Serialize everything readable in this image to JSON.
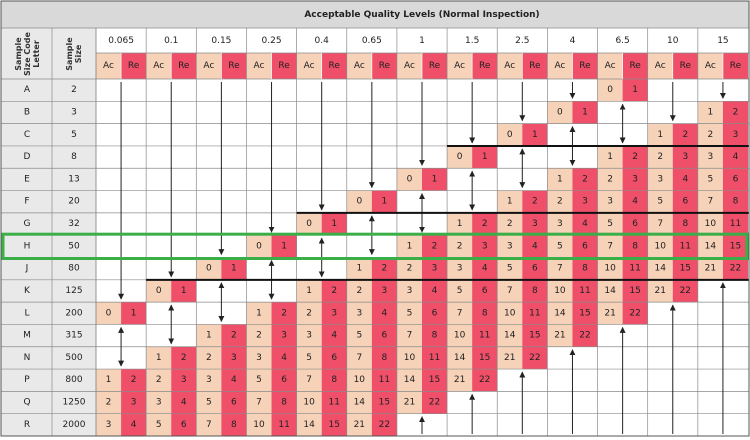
{
  "header": {
    "title": "Acceptable Quality Levels (Normal Inspection)",
    "code_letter_label": "Sample Size Code Letter",
    "sample_size_label": "Sample Size",
    "aql_levels": [
      "0.065",
      "0.1",
      "0.15",
      "0.25",
      "0.4",
      "0.65",
      "1",
      "1.5",
      "2.5",
      "4",
      "6.5",
      "10",
      "15"
    ],
    "ac_label": "Ac",
    "re_label": "Re"
  },
  "highlight": "H",
  "rows": [
    {
      "code": "A",
      "size": 2,
      "cells": [
        null,
        null,
        null,
        null,
        null,
        null,
        null,
        null,
        null,
        null,
        [
          0,
          1
        ],
        null,
        null
      ]
    },
    {
      "code": "B",
      "size": 3,
      "cells": [
        null,
        null,
        null,
        null,
        null,
        null,
        null,
        null,
        null,
        [
          0,
          1
        ],
        null,
        null,
        [
          1,
          2
        ]
      ]
    },
    {
      "code": "C",
      "size": 5,
      "cells": [
        null,
        null,
        null,
        null,
        null,
        null,
        null,
        null,
        [
          0,
          1
        ],
        null,
        null,
        [
          1,
          2
        ],
        [
          2,
          3
        ]
      ]
    },
    {
      "code": "D",
      "size": 8,
      "cells": [
        null,
        null,
        null,
        null,
        null,
        null,
        null,
        [
          0,
          1
        ],
        null,
        null,
        [
          1,
          2
        ],
        [
          2,
          3
        ],
        [
          3,
          4
        ]
      ]
    },
    {
      "code": "E",
      "size": 13,
      "cells": [
        null,
        null,
        null,
        null,
        null,
        null,
        [
          0,
          1
        ],
        null,
        null,
        [
          1,
          2
        ],
        [
          2,
          3
        ],
        [
          3,
          4
        ],
        [
          5,
          6
        ]
      ]
    },
    {
      "code": "F",
      "size": 20,
      "cells": [
        null,
        null,
        null,
        null,
        null,
        [
          0,
          1
        ],
        null,
        null,
        [
          1,
          2
        ],
        [
          2,
          3
        ],
        [
          3,
          4
        ],
        [
          5,
          6
        ],
        [
          7,
          8
        ]
      ]
    },
    {
      "code": "G",
      "size": 32,
      "cells": [
        null,
        null,
        null,
        null,
        [
          0,
          1
        ],
        null,
        null,
        [
          1,
          2
        ],
        [
          2,
          3
        ],
        [
          3,
          4
        ],
        [
          5,
          6
        ],
        [
          7,
          8
        ],
        [
          10,
          11
        ]
      ]
    },
    {
      "code": "H",
      "size": 50,
      "cells": [
        null,
        null,
        null,
        [
          0,
          1
        ],
        null,
        null,
        [
          1,
          2
        ],
        [
          2,
          3
        ],
        [
          3,
          4
        ],
        [
          5,
          6
        ],
        [
          7,
          8
        ],
        [
          10,
          11
        ],
        [
          14,
          15
        ]
      ]
    },
    {
      "code": "J",
      "size": 80,
      "cells": [
        null,
        null,
        [
          0,
          1
        ],
        null,
        null,
        [
          1,
          2
        ],
        [
          2,
          3
        ],
        [
          3,
          4
        ],
        [
          5,
          6
        ],
        [
          7,
          8
        ],
        [
          10,
          11
        ],
        [
          14,
          15
        ],
        [
          21,
          22
        ]
      ]
    },
    {
      "code": "K",
      "size": 125,
      "cells": [
        null,
        [
          0,
          1
        ],
        null,
        null,
        [
          1,
          2
        ],
        [
          2,
          3
        ],
        [
          3,
          4
        ],
        [
          5,
          6
        ],
        [
          7,
          8
        ],
        [
          10,
          11
        ],
        [
          14,
          15
        ],
        [
          21,
          22
        ],
        null
      ]
    },
    {
      "code": "L",
      "size": 200,
      "cells": [
        [
          0,
          1
        ],
        null,
        null,
        [
          1,
          2
        ],
        [
          2,
          3
        ],
        [
          3,
          4
        ],
        [
          5,
          6
        ],
        [
          7,
          8
        ],
        [
          10,
          11
        ],
        [
          14,
          15
        ],
        [
          21,
          22
        ],
        null,
        null
      ]
    },
    {
      "code": "M",
      "size": 315,
      "cells": [
        null,
        null,
        [
          1,
          2
        ],
        [
          2,
          3
        ],
        [
          3,
          4
        ],
        [
          5,
          6
        ],
        [
          7,
          8
        ],
        [
          10,
          11
        ],
        [
          14,
          15
        ],
        [
          21,
          22
        ],
        null,
        null,
        null
      ]
    },
    {
      "code": "N",
      "size": 500,
      "cells": [
        null,
        [
          1,
          2
        ],
        [
          2,
          3
        ],
        [
          3,
          4
        ],
        [
          5,
          6
        ],
        [
          7,
          8
        ],
        [
          10,
          11
        ],
        [
          14,
          15
        ],
        [
          21,
          22
        ],
        null,
        null,
        null,
        null
      ]
    },
    {
      "code": "P",
      "size": 800,
      "cells": [
        [
          1,
          2
        ],
        [
          2,
          3
        ],
        [
          3,
          4
        ],
        [
          5,
          6
        ],
        [
          7,
          8
        ],
        [
          10,
          11
        ],
        [
          14,
          15
        ],
        [
          21,
          22
        ],
        null,
        null,
        null,
        null,
        null
      ]
    },
    {
      "code": "Q",
      "size": 1250,
      "cells": [
        [
          2,
          3
        ],
        [
          3,
          4
        ],
        [
          5,
          6
        ],
        [
          7,
          8
        ],
        [
          10,
          11
        ],
        [
          14,
          15
        ],
        [
          21,
          22
        ],
        null,
        null,
        null,
        null,
        null,
        null
      ]
    },
    {
      "code": "R",
      "size": 2000,
      "cells": [
        [
          3,
          4
        ],
        [
          5,
          6
        ],
        [
          7,
          8
        ],
        [
          10,
          11
        ],
        [
          14,
          15
        ],
        [
          21,
          22
        ],
        null,
        null,
        null,
        null,
        null,
        null,
        null
      ]
    }
  ]
}
